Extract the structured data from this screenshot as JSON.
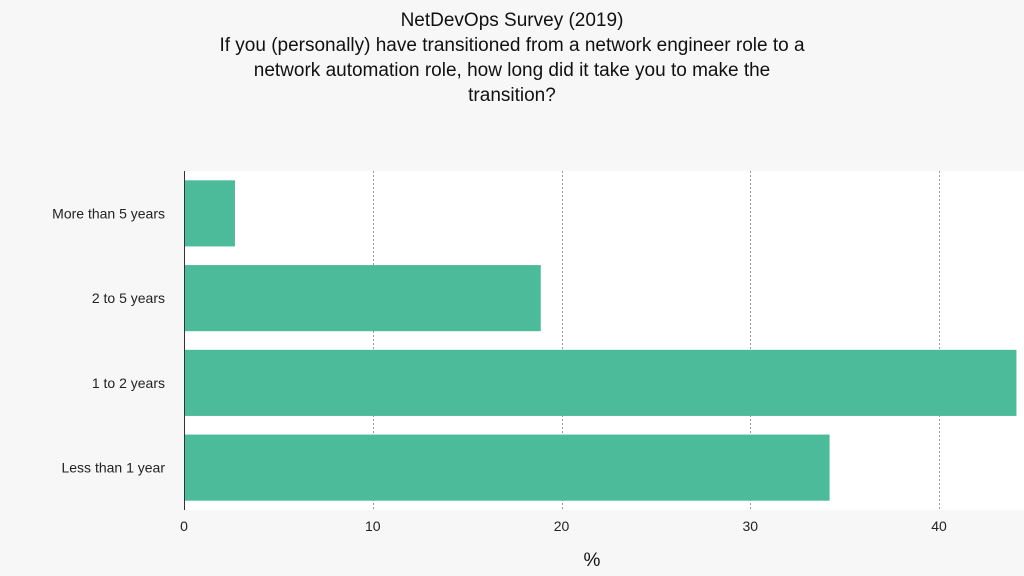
{
  "chart_data": {
    "type": "bar",
    "orientation": "horizontal",
    "title_lines": [
      "NetDevOps Survey (2019)",
      "If you (personally) have transitioned from a network engineer role to a",
      "network automation role, how long did it take you to make the",
      "transition?"
    ],
    "categories": [
      "More than 5 years",
      "2 to 5 years",
      "1 to 2 years",
      "Less than 1 year"
    ],
    "values": [
      2.7,
      18.9,
      44.1,
      34.2
    ],
    "xlabel": "%",
    "ylabel": "",
    "xlim": [
      0,
      44.5
    ],
    "xticks": [
      0,
      10,
      20,
      30,
      40
    ],
    "grid": "vertical dashed",
    "bar_color": "#4cbb9a",
    "plot_background": "#ffffff",
    "page_background": "#f7f7f7"
  }
}
